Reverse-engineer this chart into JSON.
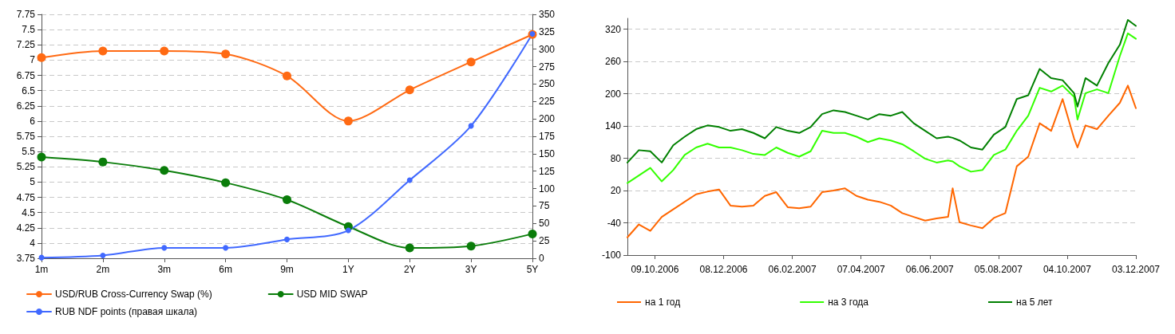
{
  "chart_data": [
    {
      "type": "line",
      "categories": [
        "1m",
        "2m",
        "3m",
        "6m",
        "9m",
        "1Y",
        "2Y",
        "3Y",
        "5Y"
      ],
      "ylim": [
        3.75,
        7.75
      ],
      "yticks": [
        3.75,
        4,
        4.25,
        4.5,
        4.75,
        5,
        5.25,
        5.5,
        5.75,
        6,
        6.25,
        6.5,
        6.75,
        7,
        7.25,
        7.5,
        7.75
      ],
      "y2lim": [
        0,
        350
      ],
      "y2ticks": [
        0,
        25,
        50,
        75,
        100,
        125,
        150,
        175,
        200,
        225,
        250,
        275,
        300,
        325,
        350
      ],
      "grid": "y",
      "legend": "bottom left",
      "marker": "circle",
      "line_style": "solid",
      "series": [
        {
          "name": "USD/RUB Cross-Currency Swap (%)",
          "color": "#ff6a13",
          "values": [
            7.04,
            7.15,
            7.15,
            7.1,
            6.74,
            6.0,
            6.51,
            6.97,
            7.42
          ]
        },
        {
          "name": "USD MID SWAP",
          "color": "#0a7d0a",
          "values": [
            5.41,
            5.33,
            5.19,
            4.99,
            4.71,
            4.27,
            3.92,
            3.95,
            4.15
          ]
        },
        {
          "name": "RUB NDF points (правая шкала)",
          "color": "#4169ff",
          "axis": "y2",
          "values": [
            1,
            4,
            15,
            15,
            27,
            40,
            112,
            190,
            322
          ]
        }
      ]
    },
    {
      "type": "line",
      "x": [
        "2006-09-15",
        "2006-09-25",
        "2006-10-05",
        "2006-10-15",
        "2006-10-25",
        "2006-11-04",
        "2006-11-14",
        "2006-11-24",
        "2006-12-04",
        "2006-12-14",
        "2006-12-24",
        "2007-01-03",
        "2007-01-13",
        "2007-01-23",
        "2007-02-02",
        "2007-02-12",
        "2007-02-22",
        "2007-03-04",
        "2007-03-14",
        "2007-03-24",
        "2007-04-03",
        "2007-04-13",
        "2007-04-23",
        "2007-05-03",
        "2007-05-13",
        "2007-05-23",
        "2007-06-02",
        "2007-06-12",
        "2007-06-22",
        "2007-06-26",
        "2007-07-02",
        "2007-07-12",
        "2007-07-22",
        "2007-08-01",
        "2007-08-11",
        "2007-08-21",
        "2007-08-31",
        "2007-09-10",
        "2007-09-20",
        "2007-09-30",
        "2007-10-10",
        "2007-10-13",
        "2007-10-20",
        "2007-10-30",
        "2007-11-09",
        "2007-11-19",
        "2007-11-26",
        "2007-12-03"
      ],
      "xlim": [
        "2006-09-15",
        "2007-12-03"
      ],
      "xticks": [
        {
          "value": "2006-10-09",
          "label": "09.10.2006"
        },
        {
          "value": "2006-12-08",
          "label": "08.12.2006"
        },
        {
          "value": "2007-02-06",
          "label": "06.02.2007"
        },
        {
          "value": "2007-04-07",
          "label": "07.04.2007"
        },
        {
          "value": "2007-06-06",
          "label": "06.06.2007"
        },
        {
          "value": "2007-08-05",
          "label": "05.08.2007"
        },
        {
          "value": "2007-10-04",
          "label": "04.10.2007"
        },
        {
          "value": "2007-12-03",
          "label": "03.12.2007"
        }
      ],
      "ylim": [
        -100,
        340
      ],
      "yticks": [
        -100,
        -40,
        20,
        80,
        140,
        200,
        260,
        320
      ],
      "grid": "y",
      "legend": "bottom",
      "line_style": "solid",
      "series": [
        {
          "name": "на 1 год",
          "color": "#ff6600",
          "values": [
            -67,
            -43,
            -55,
            -29,
            -15,
            -1,
            13,
            18,
            22,
            -8,
            -10,
            -8,
            10,
            17,
            -11,
            -13,
            -10,
            17,
            20,
            24,
            10,
            3,
            -1,
            -8,
            -22,
            -29,
            -36,
            -32,
            -29,
            24,
            -39,
            -45,
            -50,
            -31,
            -22,
            65,
            83,
            145,
            131,
            190,
            117,
            100,
            141,
            134,
            159,
            183,
            215,
            173
          ]
        },
        {
          "name": "на 3 года",
          "color": "#33ff00",
          "values": [
            34,
            48,
            62,
            37,
            58,
            86,
            100,
            107,
            100,
            100,
            95,
            88,
            86,
            100,
            90,
            83,
            93,
            131,
            127,
            127,
            120,
            110,
            117,
            113,
            106,
            93,
            79,
            72,
            76,
            74,
            65,
            55,
            58,
            86,
            96,
            131,
            159,
            211,
            204,
            215,
            194,
            152,
            201,
            208,
            201,
            270,
            312,
            302
          ]
        },
        {
          "name": "на 5 лет",
          "color": "#008000",
          "values": [
            72,
            95,
            93,
            72,
            104,
            120,
            134,
            141,
            138,
            131,
            134,
            127,
            117,
            138,
            131,
            127,
            138,
            162,
            169,
            166,
            159,
            152,
            162,
            159,
            166,
            145,
            131,
            117,
            120,
            118,
            113,
            100,
            96,
            124,
            138,
            190,
            197,
            246,
            229,
            225,
            201,
            176,
            229,
            215,
            257,
            291,
            337,
            326
          ]
        }
      ]
    }
  ]
}
